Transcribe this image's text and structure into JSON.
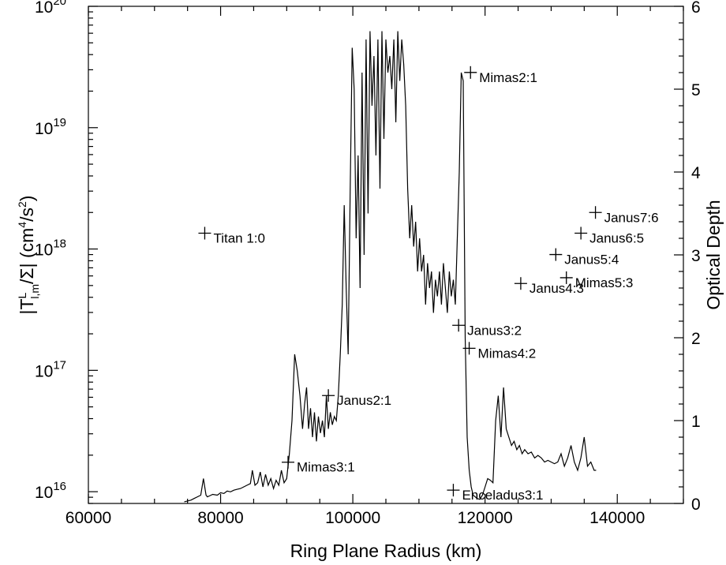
{
  "chart_data": {
    "type": "scatter",
    "xlabel": "Ring Plane Radius (km)",
    "ylabel_left": "|T^L_l,m/Σ| (cm^4/s^2)",
    "ylabel_left_parts": {
      "pre": "|T",
      "sup": "L",
      "sub": "l,m",
      "mid": "/Σ| (cm",
      "sup2": "4",
      "mid2": "/s",
      "sup3": "2",
      "post": ")"
    },
    "ylabel_right": "Optical Depth",
    "xlim": [
      60000,
      150000
    ],
    "ylim_left": [
      8000000000000000.0,
      1e+20
    ],
    "ylim_left_scale": "log",
    "ylim_right": [
      0,
      6
    ],
    "x_ticks": [
      {
        "value": 60000,
        "label": "60000"
      },
      {
        "value": 80000,
        "label": "80000"
      },
      {
        "value": 100000,
        "label": "100000"
      },
      {
        "value": 120000,
        "label": "120000"
      },
      {
        "value": 140000,
        "label": "140000"
      }
    ],
    "y_left_ticks": [
      {
        "value": 1e+16,
        "base": "10",
        "exp": "16"
      },
      {
        "value": 1e+17,
        "base": "10",
        "exp": "17"
      },
      {
        "value": 1e+18,
        "base": "10",
        "exp": "18"
      },
      {
        "value": 1e+19,
        "base": "10",
        "exp": "19"
      },
      {
        "value": 1e+20,
        "base": "10",
        "exp": "20"
      }
    ],
    "y_right_ticks": [
      {
        "value": 0,
        "label": "0"
      },
      {
        "value": 1,
        "label": "1"
      },
      {
        "value": 2,
        "label": "2"
      },
      {
        "value": 3,
        "label": "3"
      },
      {
        "value": 4,
        "label": "4"
      },
      {
        "value": 5,
        "label": "5"
      },
      {
        "value": 6,
        "label": "6"
      }
    ],
    "resonances": [
      {
        "name": "Titan 1:0",
        "x": 77600,
        "y": 1.35e+18
      },
      {
        "name": "Mimas3:1",
        "x": 90200,
        "y": 1.75e+16
      },
      {
        "name": "Janus2:1",
        "x": 96300,
        "y": 6.2e+16
      },
      {
        "name": "Enceladus3:1",
        "x": 115200,
        "y": 1.03e+16
      },
      {
        "name": "Janus3:2",
        "x": 116000,
        "y": 2.35e+17
      },
      {
        "name": "Mimas4:2",
        "x": 117600,
        "y": 1.52e+17
      },
      {
        "name": "Mimas2:1",
        "x": 117800,
        "y": 2.85e+19
      },
      {
        "name": "Janus4:3",
        "x": 125400,
        "y": 5.2e+17
      },
      {
        "name": "Janus5:4",
        "x": 130700,
        "y": 9e+17
      },
      {
        "name": "Mimas5:3",
        "x": 132300,
        "y": 5.8e+17
      },
      {
        "name": "Janus6:5",
        "x": 134500,
        "y": 1.35e+18
      },
      {
        "name": "Janus7:6",
        "x": 136700,
        "y": 2e+18
      }
    ],
    "optical_depth": {
      "x": [
        74500,
        75500,
        76000,
        76500,
        77000,
        77400,
        77800,
        78000,
        78300,
        78800,
        79500,
        80000,
        80500,
        81000,
        81500,
        82000,
        82500,
        83000,
        83500,
        84000,
        84500,
        84800,
        85200,
        85600,
        86000,
        86400,
        86800,
        87200,
        87600,
        88000,
        88400,
        88800,
        89200,
        89600,
        90000,
        90400,
        90800,
        91200,
        91600,
        92000,
        92400,
        92700,
        93000,
        93300,
        93600,
        93900,
        94200,
        94500,
        94800,
        95100,
        95400,
        95700,
        96000,
        96300,
        96600,
        96900,
        97200,
        97500,
        97800,
        98100,
        98400,
        98700,
        99000,
        99300,
        99600,
        99900,
        100200,
        100500,
        100800,
        101100,
        101400,
        101700,
        102000,
        102300,
        102600,
        102900,
        103200,
        103500,
        103800,
        104100,
        104400,
        104700,
        105000,
        105300,
        105600,
        105900,
        106200,
        106500,
        106800,
        107100,
        107400,
        107700,
        108000,
        108300,
        108600,
        108900,
        109200,
        109500,
        109800,
        110100,
        110400,
        110700,
        111000,
        111300,
        111600,
        111900,
        112200,
        112500,
        112800,
        113100,
        113400,
        113700,
        114000,
        114300,
        114600,
        114900,
        115200,
        115500,
        115800,
        116100,
        116400,
        116700,
        117000,
        117300,
        117600,
        117900,
        118200,
        118500,
        118800,
        119200,
        119600,
        120000,
        120400,
        120800,
        121200,
        121600,
        122000,
        122400,
        122800,
        123200,
        123600,
        124000,
        124400,
        124800,
        125200,
        125600,
        126000,
        126500,
        127000,
        127500,
        128000,
        128500,
        129000,
        129500,
        130000,
        130500,
        131000,
        131500,
        132000,
        132500,
        133000,
        133500,
        134000,
        134500,
        135000,
        135500,
        136000,
        136500,
        136800
      ],
      "values": [
        0.02,
        0.04,
        0.06,
        0.08,
        0.1,
        0.3,
        0.1,
        0.08,
        0.09,
        0.11,
        0.1,
        0.13,
        0.12,
        0.15,
        0.14,
        0.16,
        0.17,
        0.18,
        0.2,
        0.22,
        0.24,
        0.4,
        0.22,
        0.25,
        0.38,
        0.2,
        0.35,
        0.22,
        0.3,
        0.18,
        0.28,
        0.22,
        0.4,
        0.25,
        0.3,
        0.6,
        1.0,
        1.8,
        1.6,
        1.3,
        0.9,
        1.2,
        1.4,
        0.9,
        1.15,
        0.8,
        1.1,
        0.75,
        1.05,
        0.85,
        1.0,
        0.8,
        1.3,
        0.9,
        1.1,
        0.95,
        1.05,
        1.0,
        1.3,
        1.8,
        2.4,
        3.6,
        2.6,
        1.8,
        3.8,
        5.5,
        5.0,
        3.2,
        4.2,
        2.6,
        5.2,
        3.0,
        5.6,
        3.5,
        5.7,
        4.8,
        5.4,
        4.2,
        5.6,
        3.8,
        5.7,
        4.4,
        5.6,
        5.2,
        5.4,
        5.0,
        5.6,
        4.6,
        5.7,
        5.1,
        5.6,
        5.3,
        4.8,
        3.8,
        3.2,
        3.6,
        3.1,
        3.4,
        2.8,
        3.2,
        2.8,
        3.0,
        2.4,
        2.9,
        2.6,
        2.8,
        2.3,
        2.7,
        2.5,
        2.8,
        2.4,
        2.9,
        2.6,
        2.3,
        2.8,
        2.5,
        2.7,
        2.4,
        3.2,
        4.0,
        5.2,
        5.1,
        2.0,
        0.8,
        0.4,
        0.2,
        0.1,
        0.08,
        0.06,
        0.05,
        0.1,
        0.2,
        0.3,
        0.28,
        0.25,
        1.0,
        1.3,
        0.8,
        1.4,
        0.9,
        0.8,
        0.7,
        0.75,
        0.65,
        0.7,
        0.6,
        0.65,
        0.6,
        0.62,
        0.55,
        0.58,
        0.55,
        0.5,
        0.52,
        0.5,
        0.48,
        0.5,
        0.6,
        0.45,
        0.55,
        0.7,
        0.5,
        0.4,
        0.55,
        0.8,
        0.45,
        0.5,
        0.4,
        0.4
      ]
    }
  }
}
